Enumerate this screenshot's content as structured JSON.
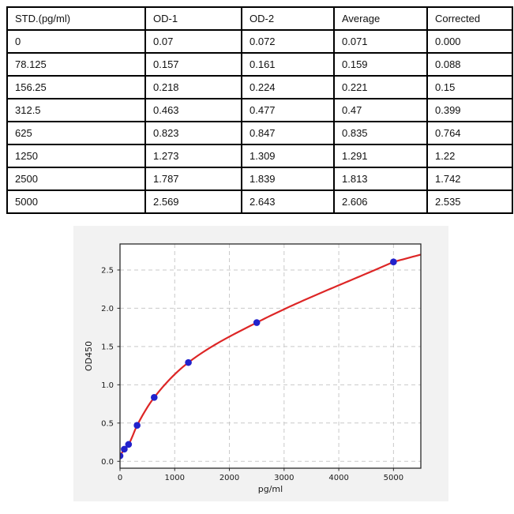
{
  "table": {
    "columns": [
      "STD.(pg/ml)",
      "OD-1",
      "OD-2",
      "Average",
      "Corrected"
    ],
    "rows": [
      [
        "0",
        "0.07",
        "0.072",
        "0.071",
        "0.000"
      ],
      [
        "78.125",
        "0.157",
        "0.161",
        "0.159",
        "0.088"
      ],
      [
        "156.25",
        "0.218",
        "0.224",
        "0.221",
        "0.15"
      ],
      [
        "312.5",
        "0.463",
        "0.477",
        "0.47",
        "0.399"
      ],
      [
        "625",
        "0.823",
        "0.847",
        "0.835",
        "0.764"
      ],
      [
        "1250",
        "1.273",
        "1.309",
        "1.291",
        "1.22"
      ],
      [
        "2500",
        "1.787",
        "1.839",
        "1.813",
        "1.742"
      ],
      [
        "5000",
        "2.569",
        "2.643",
        "2.606",
        "2.535"
      ]
    ]
  },
  "chart_data": {
    "type": "scatter",
    "title": "",
    "xlabel": "pg/ml",
    "ylabel": "OD450",
    "x": [
      0,
      78.125,
      156.25,
      312.5,
      625,
      1250,
      2500,
      5000
    ],
    "y": [
      0.071,
      0.159,
      0.221,
      0.47,
      0.835,
      1.291,
      1.813,
      2.606
    ],
    "series": [
      {
        "name": "standard-points",
        "type": "scatter"
      },
      {
        "name": "fitted-curve",
        "type": "line"
      }
    ],
    "xlim": [
      0,
      5500
    ],
    "ylim": [
      -0.09,
      2.84
    ],
    "xticks": [
      0,
      1000,
      2000,
      3000,
      4000,
      5000
    ],
    "yticks": [
      0.0,
      0.5,
      1.0,
      1.5,
      2.0,
      2.5
    ],
    "grid": true,
    "grid_style": "dashed",
    "legend_position": "none",
    "colors": {
      "marker": "#2222cc",
      "curve": "#dd2626",
      "figure_bg": "#f2f2f2",
      "plot_bg": "#ffffff",
      "grid": "#c9c9c9",
      "spine": "#2a2a2a"
    }
  }
}
